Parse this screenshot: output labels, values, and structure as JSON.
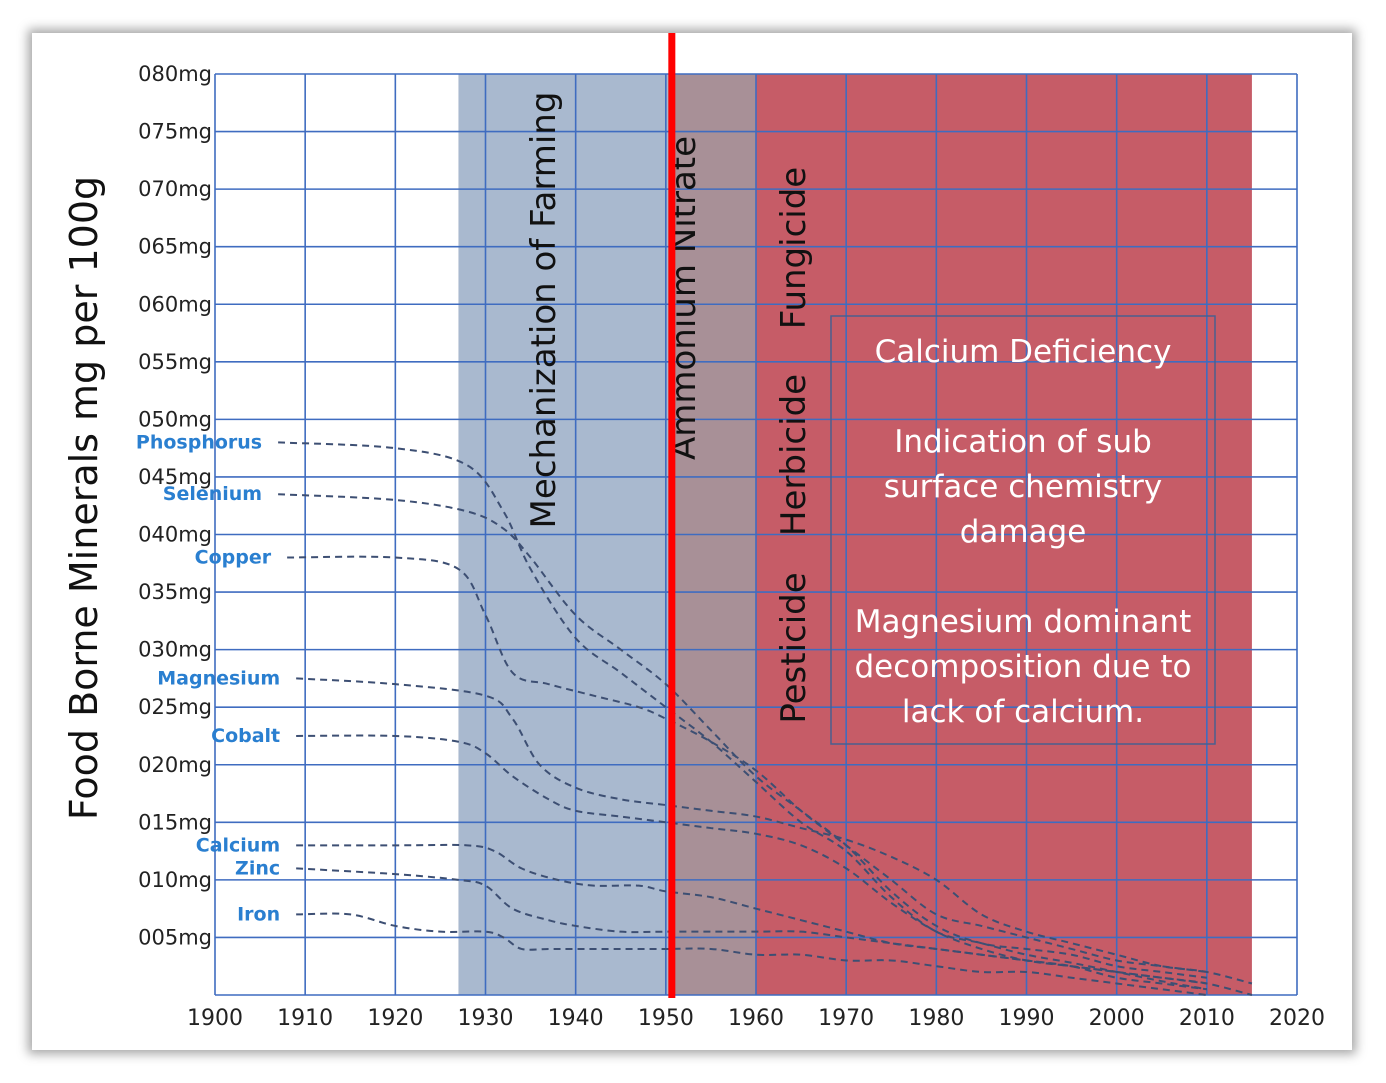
{
  "chart_data": {
    "type": "line",
    "ylabel": "Food Borne Minerals mg per 100g",
    "xlabel": "",
    "xlim": [
      1900,
      2020
    ],
    "ylim": [
      0,
      80
    ],
    "x_ticks": [
      "1900",
      "1910",
      "1920",
      "1930",
      "1940",
      "1950",
      "1960",
      "1970",
      "1980",
      "1990",
      "2000",
      "2010",
      "2020"
    ],
    "y_ticks": [
      "005mg",
      "010mg",
      "015mg",
      "020mg",
      "025mg",
      "030mg",
      "035mg",
      "040mg",
      "045mg",
      "050mg",
      "055mg",
      "060mg",
      "065mg",
      "070mg",
      "075mg",
      "080mg"
    ],
    "regions": [
      {
        "label": "Mechanization of Farming",
        "from": 1927,
        "to": 1951,
        "color": "#a9b9cf"
      },
      {
        "label": "Ammonium Nitrate",
        "from": 1951,
        "to": 1960,
        "color": "#a89097"
      },
      {
        "label": "Pesticide",
        "from": 1960,
        "to": 2015,
        "color": "#c65c67"
      },
      {
        "label": "Herbicide",
        "from": 1960,
        "to": 2015,
        "color": "#c65c67"
      },
      {
        "label": "Fungicide",
        "from": 1960,
        "to": 2015,
        "color": "#c65c67"
      }
    ],
    "marker": {
      "x": 1950,
      "color": "#ff0000"
    },
    "annotation_box": [
      "Calcium Deficiency",
      "Indication of sub",
      "surface chemistry",
      "damage",
      "Magnesium dominant",
      "decomposition due to",
      "lack of calcium."
    ],
    "series": [
      {
        "name": "Phosphorus",
        "x": [
          1907,
          1920,
          1928,
          1932,
          1935,
          1940,
          1945,
          1950,
          1955,
          1960,
          1965,
          1970,
          1975,
          1980,
          1985,
          1990,
          1995,
          2000,
          2005,
          2010
        ],
        "values": [
          48,
          47.5,
          46,
          42,
          37,
          31,
          28,
          25,
          22,
          18.5,
          15,
          12.5,
          8.5,
          5.5,
          4.5,
          3.5,
          2.8,
          2,
          1.2,
          0.5
        ]
      },
      {
        "name": "Selenium",
        "x": [
          1907,
          1920,
          1928,
          1932,
          1935,
          1940,
          1945,
          1950,
          1955,
          1960,
          1965,
          1970,
          1975,
          1980,
          1985,
          1990,
          1995,
          2000,
          2005,
          2010
        ],
        "values": [
          43.5,
          43,
          42,
          40.5,
          38,
          33,
          30,
          27,
          23,
          19,
          16,
          13,
          9,
          6,
          4.5,
          4,
          3.5,
          2.5,
          2,
          1.5
        ]
      },
      {
        "name": "Copper",
        "x": [
          1908,
          1920,
          1927,
          1930,
          1933,
          1937,
          1942,
          1947,
          1950,
          1955,
          1960,
          1965,
          1970,
          1975,
          1980,
          1985,
          1990,
          1995,
          2000,
          2005,
          2010
        ],
        "values": [
          38,
          38,
          37,
          33,
          28,
          27,
          26,
          25,
          24,
          22,
          19.5,
          16,
          13,
          10,
          7,
          6,
          5,
          4,
          3,
          2.5,
          2
        ]
      },
      {
        "name": "Magnesium",
        "x": [
          1909,
          1920,
          1930,
          1933,
          1936,
          1940,
          1945,
          1950,
          1955,
          1960,
          1965,
          1970,
          1975,
          1980,
          1985,
          1990,
          1995,
          2000,
          2005,
          2010,
          2015
        ],
        "values": [
          27.5,
          27,
          26,
          24,
          20,
          18,
          17,
          16.5,
          16,
          15.5,
          14.5,
          13.5,
          12,
          10,
          7,
          5.5,
          4.5,
          3.5,
          2.5,
          2,
          1
        ]
      },
      {
        "name": "Cobalt",
        "x": [
          1909,
          1920,
          1927,
          1930,
          1933,
          1937,
          1940,
          1945,
          1950,
          1955,
          1960,
          1965,
          1970,
          1975,
          1980,
          1985,
          1990,
          1995,
          2000,
          2005,
          2010,
          2015
        ],
        "values": [
          22.5,
          22.5,
          22,
          21,
          19,
          17,
          16,
          15.5,
          15,
          14.5,
          14,
          13,
          11,
          8,
          5.5,
          4,
          3,
          2.5,
          2,
          1.5,
          1,
          0
        ]
      },
      {
        "name": "Calcium",
        "x": [
          1909,
          1920,
          1928,
          1931,
          1934,
          1938,
          1942,
          1947,
          1950,
          1955,
          1960,
          1965,
          1970,
          1975,
          1980,
          1985,
          1990,
          1995,
          2000,
          2005,
          2010
        ],
        "values": [
          13,
          13,
          13,
          12.5,
          11,
          10,
          9.5,
          9.5,
          9,
          8.5,
          7.5,
          6.5,
          5.5,
          4.5,
          4,
          3.5,
          3,
          2.5,
          2,
          1.5,
          1
        ]
      },
      {
        "name": "Zinc",
        "x": [
          1909,
          1920,
          1927,
          1930,
          1933,
          1937,
          1940,
          1945,
          1950,
          1955,
          1960,
          1965,
          1970,
          1975,
          1980,
          1985,
          1990,
          1995,
          2000,
          2005,
          2010
        ],
        "values": [
          11,
          10.5,
          10,
          9.5,
          7.5,
          6.5,
          6,
          5.5,
          5.5,
          5.5,
          5.5,
          5.5,
          5,
          4.5,
          4,
          3.5,
          3,
          2.5,
          1.5,
          1,
          0.5
        ]
      },
      {
        "name": "Iron",
        "x": [
          1909,
          1915,
          1920,
          1925,
          1930,
          1932,
          1934,
          1937,
          1940,
          1945,
          1950,
          1955,
          1960,
          1965,
          1970,
          1975,
          1980,
          1985,
          1990,
          1995,
          2000,
          2005,
          2010
        ],
        "values": [
          7,
          7,
          6,
          5.5,
          5.5,
          5,
          4,
          4,
          4,
          4,
          4,
          4,
          3.5,
          3.5,
          3,
          3,
          2.5,
          2,
          2,
          1.5,
          1,
          0.5,
          0
        ]
      }
    ]
  }
}
